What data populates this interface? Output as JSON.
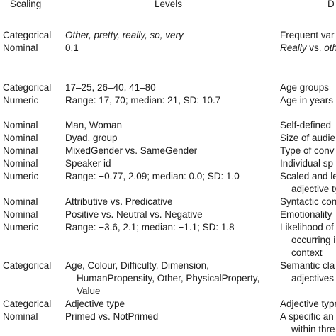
{
  "header": {
    "scaling": "Scaling",
    "levels": "Levels",
    "description": "D"
  },
  "groups": [
    {
      "rows": [
        {
          "scaling": "Categorical",
          "levels": [
            "Other, pretty, really, so, very"
          ],
          "description": "Frequent var"
        },
        {
          "scaling": "Nominal",
          "levels": "0,1",
          "description": [
            "Really",
            " vs. ",
            "oth"
          ]
        }
      ]
    },
    {
      "rows": [
        {
          "scaling": "Categorical",
          "levels": "17–25, 26–40, 41–80",
          "description": "Age groups"
        },
        {
          "scaling": "Numeric",
          "levels": "Range: 17, 70; median: 21, SD: 10.7",
          "description": "Age in years"
        }
      ]
    },
    {
      "rows": [
        {
          "scaling": "Nominal",
          "levels": "Man, Woman",
          "description": "Self-defined"
        },
        {
          "scaling": "Nominal",
          "levels": "Dyad, group",
          "description": "Size of audie"
        },
        {
          "scaling": "Nominal",
          "levels": "MixedGender vs. SameGender",
          "description": "Type of conv"
        },
        {
          "scaling": "Nominal",
          "levels": "Speaker id",
          "description": "Individual sp"
        },
        {
          "scaling": "Numeric",
          "levels": "Range: −0.77, 2.09; median: 0.0; SD: 1.0",
          "description": "Scaled and le"
        },
        {
          "description": "adjective ty"
        },
        {
          "scaling": "Nominal",
          "levels": "Attributive vs. Predicative",
          "description": "Syntactic con"
        },
        {
          "scaling": "Nominal",
          "levels": "Positive vs. Neutral vs. Negative",
          "description": "Emotionality"
        },
        {
          "scaling": "Numeric",
          "levels": "Range: −3.6, 2.1; median: −1.1; SD: 1.8",
          "description": "Likelihood of"
        },
        {
          "description": "occurring in"
        },
        {
          "description": "context"
        },
        {
          "scaling": "Categorical",
          "levels": "Age, Colour, Difficulty, Dimension,",
          "description": "Semantic cla"
        },
        {
          "levels": "HumanPropensity, Other, PhysicalProperty,",
          "description": "adjectives"
        },
        {
          "levels": "Value"
        },
        {
          "scaling": "Categorical",
          "levels": "Adjective type",
          "description": "Adjective type"
        },
        {
          "scaling": "Nominal",
          "levels": "Primed vs. NotPrimed",
          "description": "A specific an"
        },
        {
          "description": "within thre"
        }
      ]
    }
  ]
}
